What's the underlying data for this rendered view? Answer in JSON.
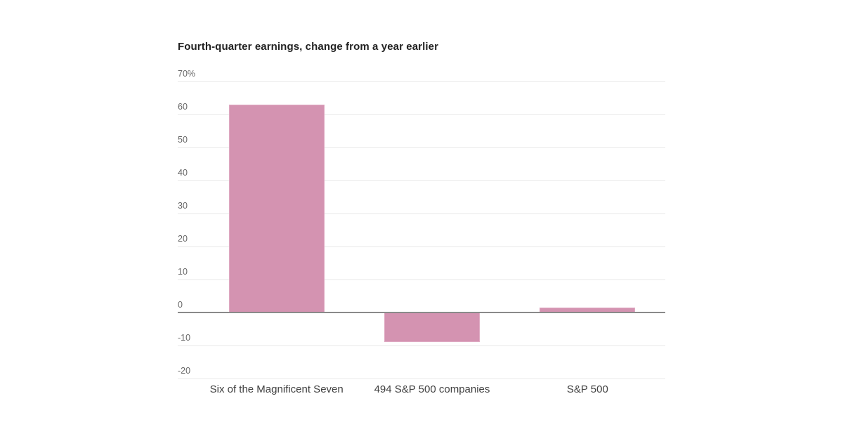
{
  "page": {
    "background": "#ffffff"
  },
  "chart_data": {
    "type": "bar",
    "title": "Fourth-quarter earnings, change from a year earlier",
    "categories": [
      "Six of the Magnificent Seven",
      "494 S&P 500 companies",
      "S&P 500"
    ],
    "values": [
      63,
      -9,
      1.5
    ],
    "value_unit": "percent",
    "xlabel": "",
    "ylabel": "",
    "ylim": [
      -20,
      70
    ],
    "ytick_step": 10,
    "yticks": [
      {
        "value": 70,
        "label": "70%"
      },
      {
        "value": 60,
        "label": "60"
      },
      {
        "value": 50,
        "label": "50"
      },
      {
        "value": 40,
        "label": "40"
      },
      {
        "value": 30,
        "label": "30"
      },
      {
        "value": 20,
        "label": "20"
      },
      {
        "value": 10,
        "label": "10"
      },
      {
        "value": 0,
        "label": "0"
      },
      {
        "value": -10,
        "label": "-10"
      },
      {
        "value": -20,
        "label": "-20"
      }
    ],
    "grid": true,
    "legend": "none",
    "baseline": 0,
    "colors": {
      "bar_fill": "#d493b1",
      "bar_edge": "#dfa9c2",
      "gridline": "#e9e9e9",
      "zero_line": "#8a8a8a",
      "title_text": "#222222",
      "tick_text": "#666666",
      "category_text": "#3f3f3f",
      "background": "#ffffff"
    }
  }
}
